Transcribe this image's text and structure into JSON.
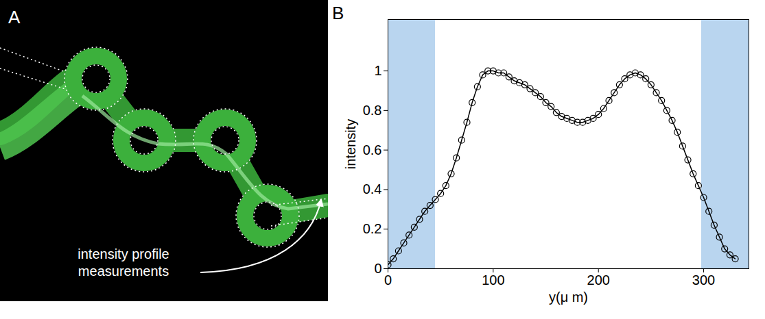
{
  "panel_a": {
    "label": "A",
    "annotation": "intensity profile measurements"
  },
  "chart_data": {
    "type": "line",
    "panel_label": "B",
    "x_label": "y(μ m)",
    "y_label": "intensity",
    "x": [
      0,
      5,
      10,
      15,
      20,
      25,
      30,
      35,
      40,
      45,
      50,
      55,
      60,
      65,
      70,
      75,
      80,
      85,
      90,
      95,
      100,
      105,
      110,
      115,
      120,
      125,
      130,
      135,
      140,
      145,
      150,
      155,
      160,
      165,
      170,
      175,
      180,
      185,
      190,
      195,
      200,
      205,
      210,
      215,
      220,
      225,
      230,
      235,
      240,
      245,
      250,
      255,
      260,
      265,
      270,
      275,
      280,
      285,
      290,
      295,
      300,
      305,
      310,
      315,
      320,
      325,
      330
    ],
    "values": [
      0.02,
      0.05,
      0.09,
      0.13,
      0.17,
      0.21,
      0.25,
      0.29,
      0.32,
      0.35,
      0.38,
      0.42,
      0.48,
      0.56,
      0.65,
      0.74,
      0.84,
      0.92,
      0.98,
      1.0,
      1.0,
      0.99,
      0.99,
      0.97,
      0.95,
      0.94,
      0.93,
      0.91,
      0.89,
      0.87,
      0.84,
      0.82,
      0.79,
      0.77,
      0.76,
      0.75,
      0.74,
      0.74,
      0.75,
      0.76,
      0.78,
      0.81,
      0.85,
      0.89,
      0.93,
      0.96,
      0.98,
      0.99,
      0.98,
      0.96,
      0.93,
      0.89,
      0.85,
      0.8,
      0.75,
      0.69,
      0.62,
      0.55,
      0.48,
      0.42,
      0.36,
      0.29,
      0.22,
      0.16,
      0.1,
      0.07,
      0.05
    ],
    "color": "#000000",
    "marker": "circle",
    "line_style": "solid",
    "xlim": [
      0,
      343
    ],
    "ylim": [
      0,
      1.26
    ],
    "xticks": [
      0,
      100,
      200,
      300
    ],
    "yticks": [
      0,
      0.2,
      0.4,
      0.6,
      0.8,
      1
    ],
    "grid": false,
    "shaded_regions": {
      "color": "#b9d5ef",
      "ranges": [
        [
          0,
          45
        ],
        [
          298,
          343
        ]
      ]
    }
  }
}
